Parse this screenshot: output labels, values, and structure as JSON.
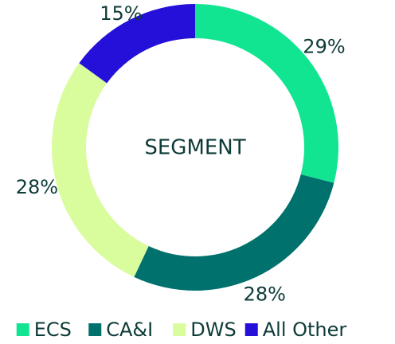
{
  "chart_data": {
    "type": "donut",
    "center_label": "SEGMENT",
    "categories": [
      "ECS",
      "CA&I",
      "DWS",
      "All Other"
    ],
    "values": [
      29,
      28,
      28,
      15
    ],
    "value_labels": [
      "29%",
      "28%",
      "28%",
      "15%"
    ],
    "colors": [
      "#12e592",
      "#00716c",
      "#d9fc9c",
      "#2410d9"
    ],
    "legend": "bottom"
  }
}
